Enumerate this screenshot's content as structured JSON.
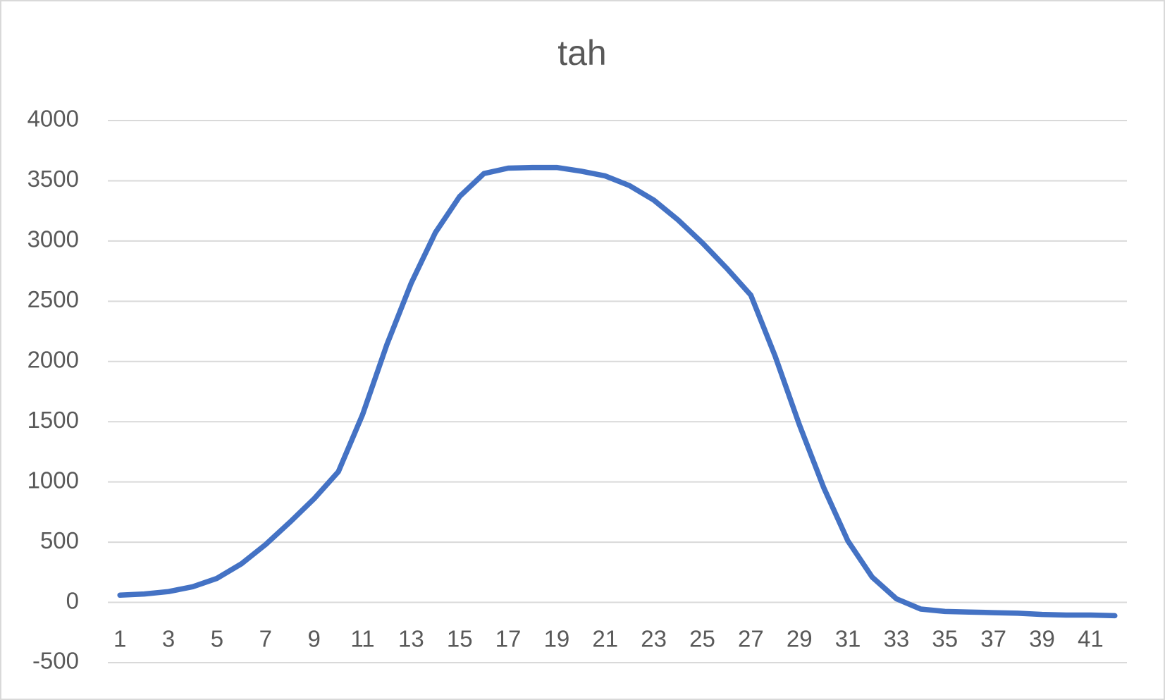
{
  "chart_data": {
    "type": "line",
    "title": "tah",
    "categories": [
      1,
      null,
      3,
      null,
      5,
      null,
      7,
      null,
      9,
      null,
      11,
      null,
      13,
      null,
      15,
      null,
      17,
      null,
      19,
      null,
      21,
      null,
      23,
      null,
      25,
      null,
      27,
      null,
      29,
      null,
      31,
      null,
      33,
      null,
      35,
      null,
      37,
      null,
      39,
      null,
      41,
      null
    ],
    "series": [
      {
        "name": "tah",
        "color": "#4472c4",
        "values": [
          60,
          70,
          90,
          130,
          200,
          320,
          480,
          665,
          860,
          1085,
          1560,
          2140,
          2650,
          3070,
          3370,
          3560,
          3605,
          3610,
          3610,
          3580,
          3540,
          3460,
          3340,
          3175,
          2985,
          2775,
          2550,
          2045,
          1475,
          955,
          510,
          210,
          30,
          -55,
          -75,
          -80,
          -85,
          -90,
          -100,
          -105,
          -105,
          -110
        ]
      }
    ],
    "ylim": [
      -500,
      4000
    ],
    "yticks": [
      -500,
      0,
      500,
      1000,
      1500,
      2000,
      2500,
      3000,
      3500,
      4000
    ],
    "grid": true
  }
}
